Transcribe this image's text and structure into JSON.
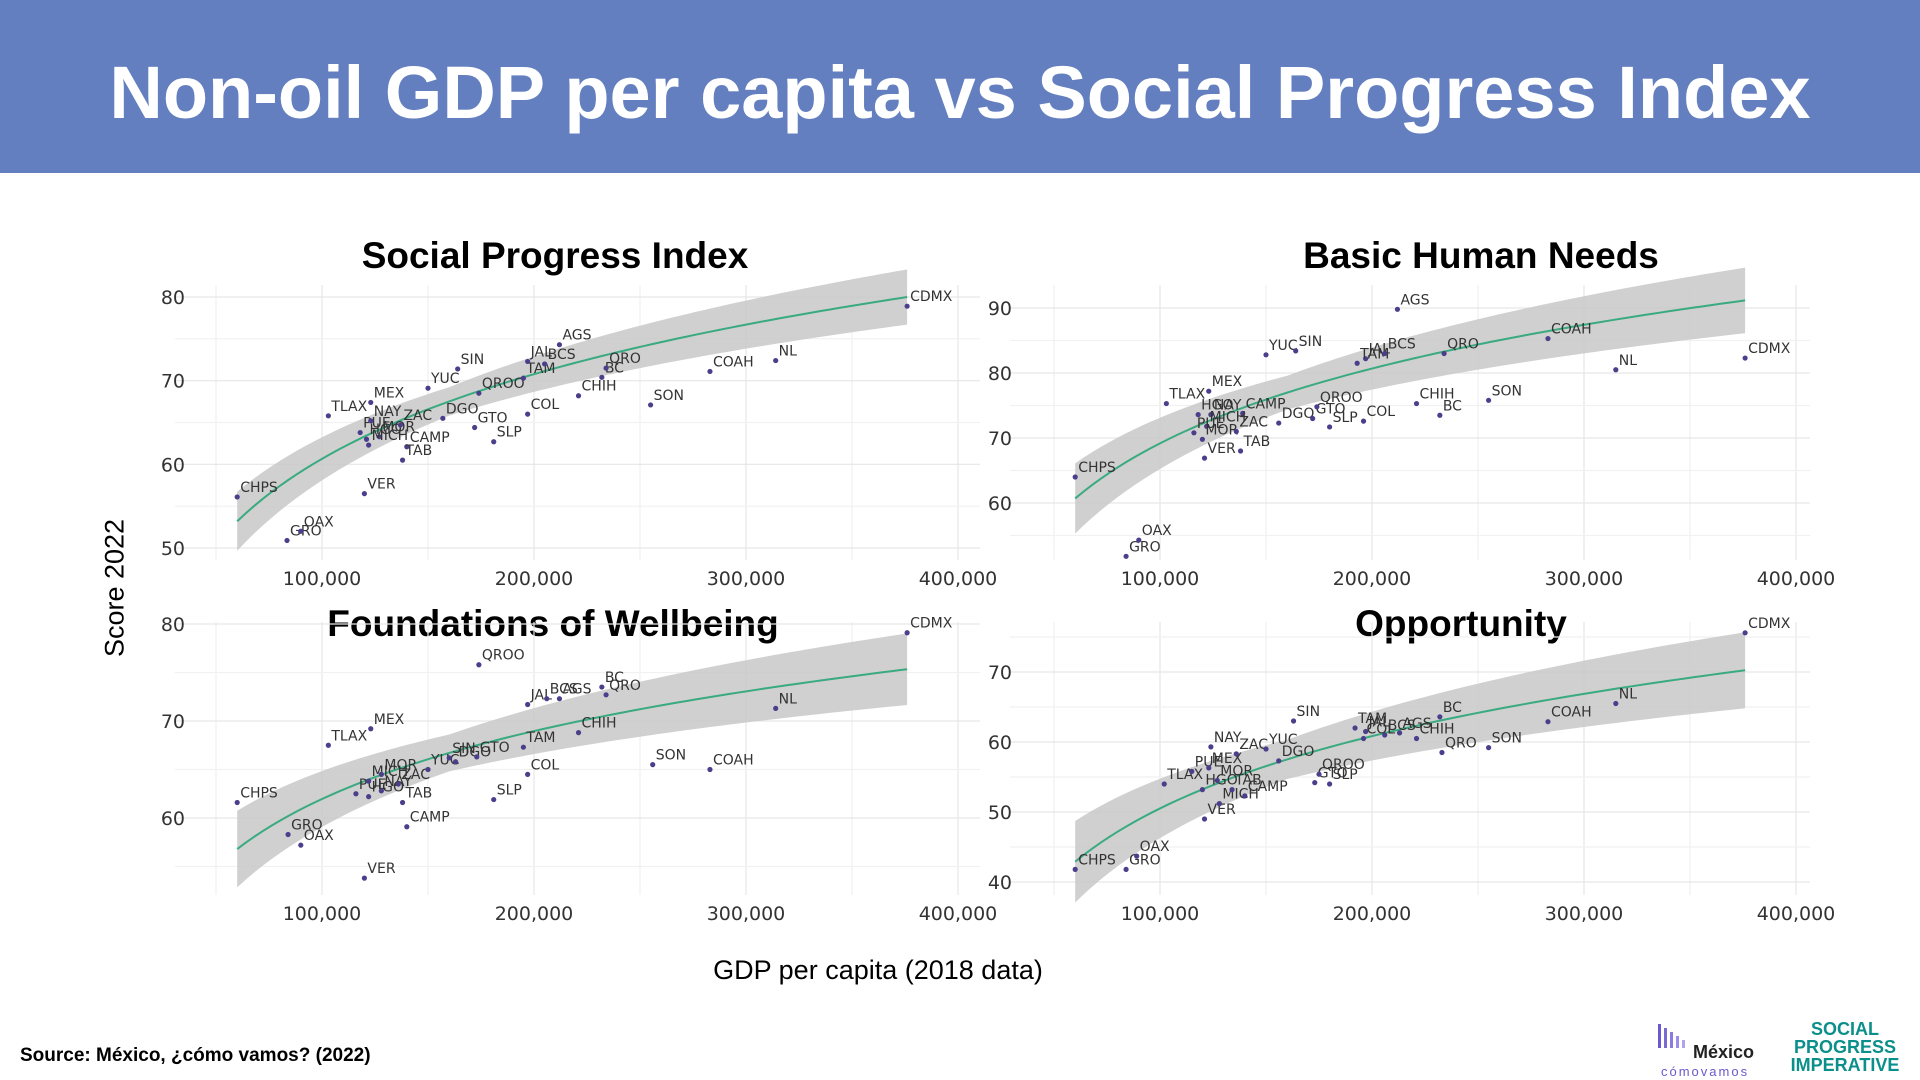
{
  "page": {
    "title": "Non-oil GDP per capita vs Social Progress Index",
    "y_axis_label": "Score 2022",
    "x_axis_label": "GDP per capita (2018 data)",
    "source": "Source: México, ¿cómo vamos? (2022)",
    "logos": {
      "mexico_como_vamos": {
        "word1": "México",
        "word2": "cómovamos"
      },
      "social_progress_imperative": {
        "line1": "SOCIAL",
        "line2": "PROGRESS",
        "line3": "IMPERATIVE"
      }
    },
    "colors": {
      "banner": "#647fc0",
      "fit_line": "#3aaa80",
      "ribbon": "#c8c8c8",
      "points": "#4b3f8c"
    }
  },
  "chart_data": [
    {
      "id": "spi",
      "type": "scatter",
      "title": "Social Progress Index",
      "title_color": "#000000",
      "xlim": [
        40000,
        400000
      ],
      "ylim": [
        48,
        80.5
      ],
      "xticks": [
        100000,
        200000,
        300000,
        400000
      ],
      "xtick_labels": [
        "100,000",
        "200,000",
        "300,000",
        "400,000"
      ],
      "yticks": [
        50,
        60,
        70,
        80
      ],
      "ytick_labels": [
        "50",
        "60",
        "70",
        "80"
      ],
      "grid": true,
      "fit": {
        "a": 14.6,
        "b": 53.2,
        "band": 1.7
      },
      "points": [
        {
          "label": "CHPS",
          "x": 60000,
          "y": 56.1
        },
        {
          "label": "GRO",
          "x": 83500,
          "y": 50.9
        },
        {
          "label": "OAX",
          "x": 90000,
          "y": 52.0
        },
        {
          "label": "VER",
          "x": 120000,
          "y": 56.5
        },
        {
          "label": "TLAX",
          "x": 103000,
          "y": 65.8
        },
        {
          "label": "PUE",
          "x": 118000,
          "y": 63.8
        },
        {
          "label": "NAY",
          "x": 123000,
          "y": 65.2
        },
        {
          "label": "HGO",
          "x": 121000,
          "y": 63.0
        },
        {
          "label": "MOR",
          "x": 127000,
          "y": 63.3
        },
        {
          "label": "MICH",
          "x": 122000,
          "y": 62.3
        },
        {
          "label": "MEX",
          "x": 123000,
          "y": 67.4
        },
        {
          "label": "ZAC",
          "x": 137000,
          "y": 64.7
        },
        {
          "label": "CAMP",
          "x": 140000,
          "y": 62.1
        },
        {
          "label": "TAB",
          "x": 138000,
          "y": 60.5
        },
        {
          "label": "YUC",
          "x": 150000,
          "y": 69.1
        },
        {
          "label": "SIN",
          "x": 164000,
          "y": 71.4
        },
        {
          "label": "DGO",
          "x": 157000,
          "y": 65.5
        },
        {
          "label": "QROO",
          "x": 174000,
          "y": 68.5
        },
        {
          "label": "GTO",
          "x": 172000,
          "y": 64.4
        },
        {
          "label": "SLP",
          "x": 181000,
          "y": 62.7
        },
        {
          "label": "COL",
          "x": 197000,
          "y": 66.0
        },
        {
          "label": "TAM",
          "x": 195000,
          "y": 70.3
        },
        {
          "label": "JAL",
          "x": 197000,
          "y": 72.3
        },
        {
          "label": "BCS",
          "x": 205000,
          "y": 72.0
        },
        {
          "label": "AGS",
          "x": 212000,
          "y": 74.3
        },
        {
          "label": "CHIH",
          "x": 221000,
          "y": 68.2
        },
        {
          "label": "BC",
          "x": 232000,
          "y": 70.4
        },
        {
          "label": "QRO",
          "x": 234000,
          "y": 71.5
        },
        {
          "label": "SON",
          "x": 255000,
          "y": 67.1
        },
        {
          "label": "COAH",
          "x": 283000,
          "y": 71.1
        },
        {
          "label": "NL",
          "x": 314000,
          "y": 72.4
        },
        {
          "label": "CDMX",
          "x": 376000,
          "y": 78.9
        }
      ]
    },
    {
      "id": "bhn",
      "type": "scatter",
      "title": "Basic Human Needs",
      "title_color": "#5bbccd",
      "xlim": [
        40000,
        400000
      ],
      "ylim": [
        51,
        92.5
      ],
      "xticks": [
        100000,
        200000,
        300000,
        400000
      ],
      "xtick_labels": [
        "100,000",
        "200,000",
        "300,000",
        "400,000"
      ],
      "yticks": [
        60,
        70,
        80,
        90
      ],
      "ytick_labels": [
        "60",
        "70",
        "80",
        "90"
      ],
      "grid": true,
      "fit": {
        "a": 16.6,
        "b": 60.7,
        "band": 2.6
      },
      "points": [
        {
          "label": "CHPS",
          "x": 60000,
          "y": 64.0
        },
        {
          "label": "GRO",
          "x": 84000,
          "y": 51.8
        },
        {
          "label": "OAX",
          "x": 90000,
          "y": 54.3
        },
        {
          "label": "TLAX",
          "x": 103000,
          "y": 75.3
        },
        {
          "label": "HGO",
          "x": 118000,
          "y": 73.6
        },
        {
          "label": "NAY",
          "x": 124000,
          "y": 73.6
        },
        {
          "label": "MEX",
          "x": 123000,
          "y": 77.2
        },
        {
          "label": "CAMP",
          "x": 139000,
          "y": 73.8
        },
        {
          "label": "MICH",
          "x": 122000,
          "y": 71.8
        },
        {
          "label": "PUE",
          "x": 116000,
          "y": 70.8
        },
        {
          "label": "MOR",
          "x": 120000,
          "y": 69.8
        },
        {
          "label": "ZAC",
          "x": 136000,
          "y": 71.0
        },
        {
          "label": "DGO",
          "x": 156000,
          "y": 72.3
        },
        {
          "label": "VER",
          "x": 121000,
          "y": 66.9
        },
        {
          "label": "TAB",
          "x": 138000,
          "y": 68.0
        },
        {
          "label": "GTO",
          "x": 172000,
          "y": 73.0
        },
        {
          "label": "QROO",
          "x": 174000,
          "y": 74.8
        },
        {
          "label": "SLP",
          "x": 180000,
          "y": 71.7
        },
        {
          "label": "COL",
          "x": 196000,
          "y": 72.6
        },
        {
          "label": "CHIH",
          "x": 221000,
          "y": 75.3
        },
        {
          "label": "BC",
          "x": 232000,
          "y": 73.5
        },
        {
          "label": "SON",
          "x": 255000,
          "y": 75.8
        },
        {
          "label": "YUC",
          "x": 150000,
          "y": 82.8
        },
        {
          "label": "SIN",
          "x": 164000,
          "y": 83.4
        },
        {
          "label": "JAL",
          "x": 197000,
          "y": 82.2
        },
        {
          "label": "TAM",
          "x": 193000,
          "y": 81.5
        },
        {
          "label": "BCS",
          "x": 206000,
          "y": 83.0
        },
        {
          "label": "QRO",
          "x": 234000,
          "y": 83.0
        },
        {
          "label": "AGS",
          "x": 212000,
          "y": 89.8
        },
        {
          "label": "COAH",
          "x": 283000,
          "y": 85.3
        },
        {
          "label": "NL",
          "x": 315000,
          "y": 80.5
        },
        {
          "label": "CDMX",
          "x": 376000,
          "y": 82.3
        }
      ]
    },
    {
      "id": "fow",
      "type": "scatter",
      "title": "Foundations of Wellbeing",
      "title_color": "#f5a25d",
      "xlim": [
        40000,
        400000
      ],
      "ylim": [
        52.7,
        80.5
      ],
      "xticks": [
        100000,
        200000,
        300000,
        400000
      ],
      "xtick_labels": [
        "100,000",
        "200,000",
        "300,000",
        "400,000"
      ],
      "yticks": [
        60,
        70,
        80
      ],
      "ytick_labels": [
        "60",
        "70",
        "80"
      ],
      "grid": true,
      "fit": {
        "a": 10.1,
        "b": 56.8,
        "band": 1.9
      },
      "points": [
        {
          "label": "CHPS",
          "x": 60000,
          "y": 61.6
        },
        {
          "label": "GRO",
          "x": 84000,
          "y": 58.3
        },
        {
          "label": "OAX",
          "x": 90000,
          "y": 57.2
        },
        {
          "label": "VER",
          "x": 120000,
          "y": 53.8
        },
        {
          "label": "CAMP",
          "x": 140000,
          "y": 59.1
        },
        {
          "label": "TLAX",
          "x": 103000,
          "y": 67.5
        },
        {
          "label": "MEX",
          "x": 123000,
          "y": 69.2
        },
        {
          "label": "PUE",
          "x": 116000,
          "y": 62.5
        },
        {
          "label": "MICH",
          "x": 122000,
          "y": 63.8
        },
        {
          "label": "HGO",
          "x": 122000,
          "y": 62.2
        },
        {
          "label": "NAY",
          "x": 128000,
          "y": 62.8
        },
        {
          "label": "MOR",
          "x": 128000,
          "y": 64.5
        },
        {
          "label": "ZAC",
          "x": 136000,
          "y": 63.5
        },
        {
          "label": "TAB",
          "x": 138000,
          "y": 61.6
        },
        {
          "label": "YUC",
          "x": 150000,
          "y": 65.0
        },
        {
          "label": "SIN",
          "x": 160000,
          "y": 66.2
        },
        {
          "label": "DGO",
          "x": 163000,
          "y": 65.8
        },
        {
          "label": "GTO",
          "x": 173000,
          "y": 66.3
        },
        {
          "label": "SLP",
          "x": 181000,
          "y": 61.9
        },
        {
          "label": "COL",
          "x": 197000,
          "y": 64.5
        },
        {
          "label": "TAM",
          "x": 195000,
          "y": 67.3
        },
        {
          "label": "QROO",
          "x": 174000,
          "y": 75.8
        },
        {
          "label": "JAL",
          "x": 197000,
          "y": 71.7
        },
        {
          "label": "BCS",
          "x": 206000,
          "y": 72.3
        },
        {
          "label": "AGS",
          "x": 212000,
          "y": 72.3
        },
        {
          "label": "BC",
          "x": 232000,
          "y": 73.5
        },
        {
          "label": "QRO",
          "x": 234000,
          "y": 72.7
        },
        {
          "label": "CHIH",
          "x": 221000,
          "y": 68.8
        },
        {
          "label": "SON",
          "x": 256000,
          "y": 65.5
        },
        {
          "label": "COAH",
          "x": 283000,
          "y": 65.0
        },
        {
          "label": "NL",
          "x": 314000,
          "y": 71.3
        },
        {
          "label": "CDMX",
          "x": 376000,
          "y": 79.1
        }
      ]
    },
    {
      "id": "opp",
      "type": "scatter",
      "title": "Opportunity",
      "title_color": "#98bd5a",
      "xlim": [
        40000,
        400000
      ],
      "ylim": [
        38.5,
        77
      ],
      "xticks": [
        100000,
        200000,
        300000,
        400000
      ],
      "xtick_labels": [
        "100,000",
        "200,000",
        "300,000",
        "400,000"
      ],
      "yticks": [
        40,
        50,
        60,
        70
      ],
      "ytick_labels": [
        "40",
        "50",
        "60",
        "70"
      ],
      "grid": true,
      "fit": {
        "a": 14.9,
        "b": 42.9,
        "band": 2.8
      },
      "points": [
        {
          "label": "CHPS",
          "x": 60000,
          "y": 41.8
        },
        {
          "label": "GRO",
          "x": 84000,
          "y": 41.8
        },
        {
          "label": "OAX",
          "x": 89000,
          "y": 43.7
        },
        {
          "label": "VER",
          "x": 121000,
          "y": 49.0
        },
        {
          "label": "MICH",
          "x": 128000,
          "y": 51.2
        },
        {
          "label": "TLAX",
          "x": 102000,
          "y": 54.0
        },
        {
          "label": "HGO",
          "x": 120000,
          "y": 53.2
        },
        {
          "label": "TAB",
          "x": 134000,
          "y": 53.2
        },
        {
          "label": "CAMP",
          "x": 140000,
          "y": 52.3
        },
        {
          "label": "PUE",
          "x": 115000,
          "y": 55.8
        },
        {
          "label": "MEX",
          "x": 123000,
          "y": 56.3
        },
        {
          "label": "MOR",
          "x": 127000,
          "y": 54.5
        },
        {
          "label": "NAY",
          "x": 124000,
          "y": 59.3
        },
        {
          "label": "ZAC",
          "x": 136000,
          "y": 58.3
        },
        {
          "label": "YUC",
          "x": 150000,
          "y": 59.0
        },
        {
          "label": "DGO",
          "x": 156000,
          "y": 57.3
        },
        {
          "label": "GTO",
          "x": 173000,
          "y": 54.2
        },
        {
          "label": "QROO",
          "x": 175000,
          "y": 55.4
        },
        {
          "label": "SLP",
          "x": 180000,
          "y": 54.0
        },
        {
          "label": "SIN",
          "x": 163000,
          "y": 63.0
        },
        {
          "label": "TAM",
          "x": 192000,
          "y": 62.0
        },
        {
          "label": "COL",
          "x": 196000,
          "y": 60.5
        },
        {
          "label": "JAL",
          "x": 197000,
          "y": 61.5
        },
        {
          "label": "BCS",
          "x": 206000,
          "y": 61.0
        },
        {
          "label": "AGS",
          "x": 213000,
          "y": 61.3
        },
        {
          "label": "CHIH",
          "x": 221000,
          "y": 60.5
        },
        {
          "label": "BC",
          "x": 232000,
          "y": 63.6
        },
        {
          "label": "QRO",
          "x": 233000,
          "y": 58.5
        },
        {
          "label": "SON",
          "x": 255000,
          "y": 59.2
        },
        {
          "label": "COAH",
          "x": 283000,
          "y": 62.9
        },
        {
          "label": "NL",
          "x": 315000,
          "y": 65.5
        },
        {
          "label": "CDMX",
          "x": 376000,
          "y": 75.6
        }
      ]
    }
  ]
}
